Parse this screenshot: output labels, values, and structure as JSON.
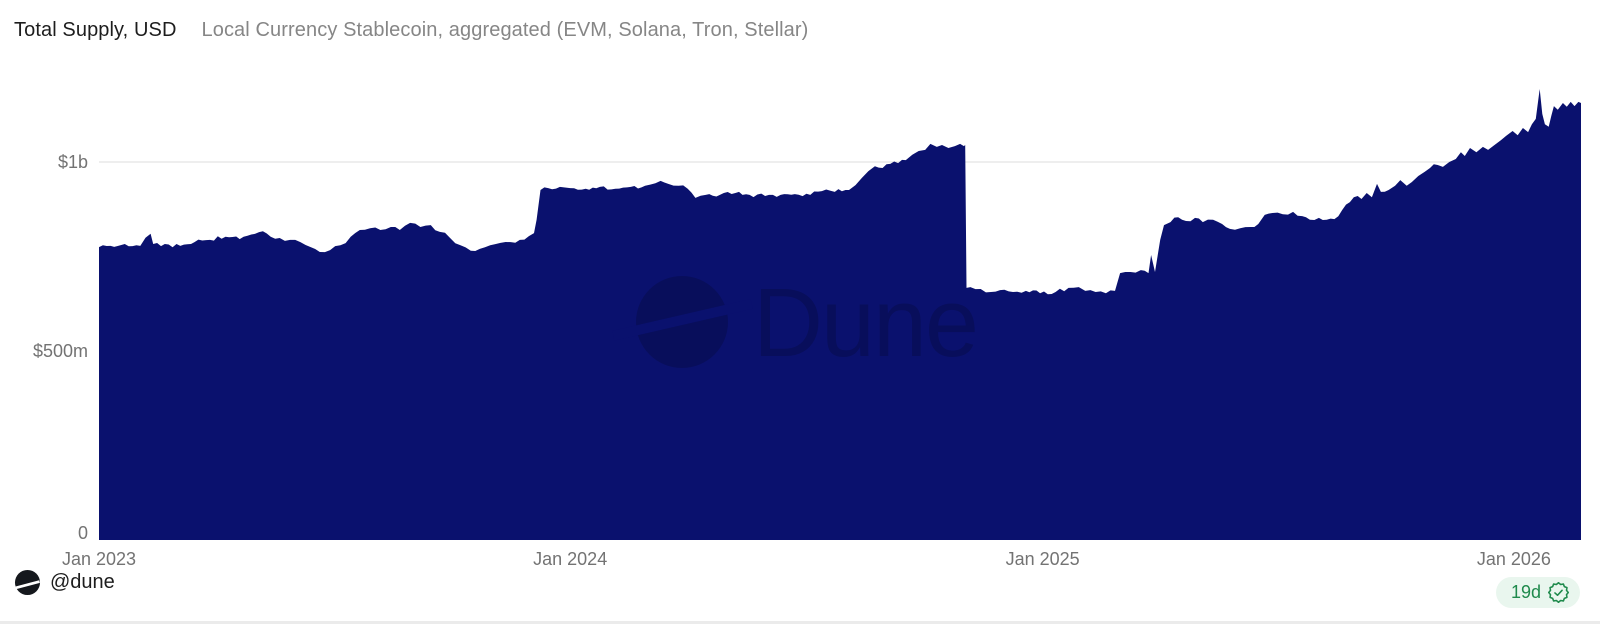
{
  "header": {
    "title": "Total Supply, USD",
    "subtitle": "Local Currency Stablecoin, aggregated (EVM, Solana, Tron, Stellar)"
  },
  "footer": {
    "handle": "@dune",
    "logo_icon": "dune-logo",
    "freshness_label": "19d",
    "freshness_icon": "verified-check-seal"
  },
  "colors": {
    "area_fill": "#0a116e",
    "gridline": "#e8e8e8",
    "axis_label": "#737373",
    "title": "#1d1d1d",
    "subtitle": "#868686",
    "badge_bg": "#e9f6ee",
    "badge_green": "#1f8a4c",
    "logo_black": "#15181d"
  },
  "chart_data": {
    "type": "area",
    "title": "Total Supply, USD",
    "subtitle": "Local Currency Stablecoin, aggregated (EVM, Solana, Tron, Stellar)",
    "watermark": "Dune",
    "unit": "USD",
    "grid": "horizontal",
    "legend": "none",
    "x_start_date": "2023-01-01",
    "x_axis_ticks": [
      {
        "label": "Jan 2023",
        "day": 0
      },
      {
        "label": "Jan 2024",
        "day": 365
      },
      {
        "label": "Jan 2025",
        "day": 731
      },
      {
        "label": "Jan 2026",
        "day": 1096
      }
    ],
    "y_axis_ticks": [
      {
        "label": "$1b",
        "value_m": 1000
      },
      {
        "label": "$500m",
        "value_m": 500
      },
      {
        "label": "0",
        "value_m": 0
      }
    ],
    "ylim_m": [
      0,
      1215
    ],
    "total_days": 1148,
    "series": [
      {
        "name": "Total Supply, USD",
        "note": "points are [days since 2023-01-01, total supply in USD millions]",
        "points": [
          [
            0,
            775
          ],
          [
            9,
            778
          ],
          [
            20,
            783
          ],
          [
            32,
            778
          ],
          [
            40,
            810
          ],
          [
            42,
            783
          ],
          [
            51,
            783
          ],
          [
            63,
            778
          ],
          [
            74,
            788
          ],
          [
            86,
            794
          ],
          [
            98,
            802
          ],
          [
            109,
            796
          ],
          [
            121,
            810
          ],
          [
            127,
            817
          ],
          [
            133,
            802
          ],
          [
            140,
            799
          ],
          [
            148,
            794
          ],
          [
            156,
            788
          ],
          [
            164,
            775
          ],
          [
            171,
            762
          ],
          [
            179,
            767
          ],
          [
            187,
            780
          ],
          [
            195,
            802
          ],
          [
            202,
            820
          ],
          [
            210,
            825
          ],
          [
            218,
            820
          ],
          [
            226,
            828
          ],
          [
            233,
            820
          ],
          [
            241,
            839
          ],
          [
            249,
            828
          ],
          [
            257,
            833
          ],
          [
            264,
            815
          ],
          [
            272,
            799
          ],
          [
            280,
            780
          ],
          [
            288,
            765
          ],
          [
            295,
            770
          ],
          [
            303,
            780
          ],
          [
            311,
            786
          ],
          [
            319,
            788
          ],
          [
            326,
            794
          ],
          [
            333,
            804
          ],
          [
            337,
            812
          ],
          [
            339,
            847
          ],
          [
            342,
            926
          ],
          [
            348,
            931
          ],
          [
            357,
            934
          ],
          [
            365,
            931
          ],
          [
            377,
            929
          ],
          [
            388,
            934
          ],
          [
            400,
            929
          ],
          [
            412,
            934
          ],
          [
            423,
            937
          ],
          [
            431,
            944
          ],
          [
            435,
            950
          ],
          [
            441,
            942
          ],
          [
            449,
            937
          ],
          [
            456,
            929
          ],
          [
            462,
            905
          ],
          [
            470,
            913
          ],
          [
            481,
            913
          ],
          [
            493,
            918
          ],
          [
            504,
            913
          ],
          [
            516,
            910
          ],
          [
            528,
            913
          ],
          [
            539,
            915
          ],
          [
            551,
            913
          ],
          [
            560,
            923
          ],
          [
            570,
            921
          ],
          [
            581,
            926
          ],
          [
            586,
            939
          ],
          [
            591,
            958
          ],
          [
            596,
            976
          ],
          [
            601,
            989
          ],
          [
            607,
            984
          ],
          [
            613,
            995
          ],
          [
            619,
            997
          ],
          [
            625,
            1005
          ],
          [
            630,
            1019
          ],
          [
            635,
            1029
          ],
          [
            640,
            1032
          ],
          [
            644,
            1048
          ],
          [
            649,
            1040
          ],
          [
            653,
            1045
          ],
          [
            658,
            1037
          ],
          [
            663,
            1042
          ],
          [
            667,
            1048
          ],
          [
            670,
            1042
          ],
          [
            671,
            1045
          ],
          [
            672,
            667
          ],
          [
            675,
            669
          ],
          [
            683,
            664
          ],
          [
            691,
            656
          ],
          [
            698,
            661
          ],
          [
            708,
            656
          ],
          [
            718,
            659
          ],
          [
            729,
            653
          ],
          [
            741,
            656
          ],
          [
            751,
            667
          ],
          [
            759,
            669
          ],
          [
            764,
            659
          ],
          [
            772,
            656
          ],
          [
            780,
            653
          ],
          [
            787,
            659
          ],
          [
            791,
            706
          ],
          [
            799,
            709
          ],
          [
            807,
            714
          ],
          [
            813,
            706
          ],
          [
            815,
            754
          ],
          [
            818,
            709
          ],
          [
            822,
            794
          ],
          [
            825,
            833
          ],
          [
            830,
            841
          ],
          [
            836,
            854
          ],
          [
            842,
            844
          ],
          [
            849,
            852
          ],
          [
            855,
            841
          ],
          [
            863,
            847
          ],
          [
            870,
            836
          ],
          [
            876,
            823
          ],
          [
            884,
            825
          ],
          [
            892,
            828
          ],
          [
            898,
            836
          ],
          [
            903,
            860
          ],
          [
            909,
            865
          ],
          [
            917,
            862
          ],
          [
            925,
            868
          ],
          [
            932,
            857
          ],
          [
            938,
            847
          ],
          [
            945,
            852
          ],
          [
            951,
            847
          ],
          [
            957,
            849
          ],
          [
            963,
            873
          ],
          [
            969,
            894
          ],
          [
            975,
            910
          ],
          [
            978,
            902
          ],
          [
            982,
            918
          ],
          [
            986,
            907
          ],
          [
            990,
            942
          ],
          [
            993,
            921
          ],
          [
            999,
            926
          ],
          [
            1004,
            937
          ],
          [
            1008,
            952
          ],
          [
            1013,
            937
          ],
          [
            1017,
            947
          ],
          [
            1022,
            963
          ],
          [
            1027,
            974
          ],
          [
            1031,
            984
          ],
          [
            1037,
            992
          ],
          [
            1041,
            987
          ],
          [
            1046,
            1000
          ],
          [
            1051,
            1008
          ],
          [
            1055,
            1026
          ],
          [
            1058,
            1016
          ],
          [
            1062,
            1037
          ],
          [
            1067,
            1026
          ],
          [
            1072,
            1040
          ],
          [
            1076,
            1032
          ],
          [
            1081,
            1045
          ],
          [
            1086,
            1058
          ],
          [
            1090,
            1069
          ],
          [
            1095,
            1082
          ],
          [
            1099,
            1071
          ],
          [
            1103,
            1090
          ],
          [
            1107,
            1079
          ],
          [
            1110,
            1100
          ],
          [
            1113,
            1114
          ],
          [
            1116,
            1193
          ],
          [
            1118,
            1127
          ],
          [
            1120,
            1100
          ],
          [
            1123,
            1093
          ],
          [
            1125,
            1122
          ],
          [
            1127,
            1148
          ],
          [
            1130,
            1138
          ],
          [
            1134,
            1156
          ],
          [
            1137,
            1146
          ],
          [
            1140,
            1159
          ],
          [
            1143,
            1148
          ],
          [
            1146,
            1159
          ],
          [
            1148,
            1156
          ]
        ]
      }
    ]
  }
}
